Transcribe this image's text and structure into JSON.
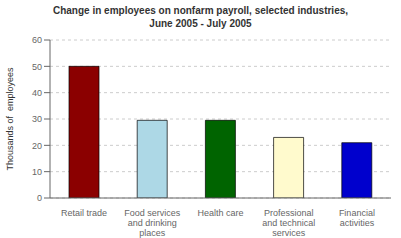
{
  "chart_data": {
    "type": "bar",
    "title": "Change in employees on nonfarm payroll, selected industries,\nJune 2005 - July 2005",
    "categories": [
      "Retail trade",
      "Food services\nand drinking\nplaces",
      "Health care",
      "Professional\nand technical\nservices",
      "Financial\nactivities"
    ],
    "values": [
      50,
      29.5,
      29.5,
      23,
      21
    ],
    "colors": [
      "#8B0000",
      "#ADD8E6",
      "#006400",
      "#FFFACD",
      "#0000CD"
    ],
    "ylabel": "Thousands of  employees",
    "ylim": [
      0,
      60
    ],
    "yticks": [
      0,
      10,
      20,
      30,
      40,
      50,
      60
    ],
    "grid": true
  }
}
